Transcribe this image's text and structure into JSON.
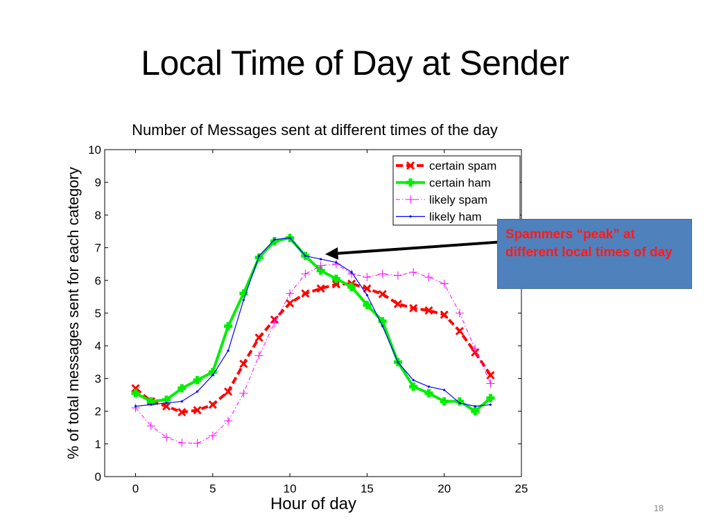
{
  "slide": {
    "title": "Local Time of Day at Sender",
    "callout": "Spammers “peak” at different local times of day",
    "page_number": "18"
  },
  "chart_data": {
    "type": "line",
    "title": "Number of Messages sent at different times of the day",
    "xlabel": "Hour of day",
    "ylabel": "% of total messages sent for each category",
    "xlim": [
      -2,
      25
    ],
    "ylim": [
      0,
      10
    ],
    "xticks": [
      0,
      5,
      10,
      15,
      20,
      25
    ],
    "yticks": [
      0,
      1,
      2,
      3,
      4,
      5,
      6,
      7,
      8,
      9,
      10
    ],
    "grid": false,
    "legend_position": "top-right",
    "x": [
      0,
      1,
      2,
      3,
      4,
      5,
      6,
      7,
      8,
      9,
      10,
      11,
      12,
      13,
      14,
      15,
      16,
      17,
      18,
      19,
      20,
      21,
      22,
      23
    ],
    "series": [
      {
        "name": "certain spam",
        "color": "#ff0000",
        "line_style": "dash",
        "marker": "x",
        "values": [
          2.7,
          2.3,
          2.15,
          1.97,
          2.03,
          2.2,
          2.6,
          3.45,
          4.25,
          4.8,
          5.3,
          5.6,
          5.75,
          5.88,
          5.9,
          5.75,
          5.58,
          5.28,
          5.15,
          5.08,
          4.95,
          4.45,
          3.8,
          3.1
        ]
      },
      {
        "name": "certain ham",
        "color": "#00ee00",
        "line_style": "solid",
        "marker": "plus",
        "values": [
          2.55,
          2.3,
          2.35,
          2.7,
          2.95,
          3.2,
          4.6,
          5.6,
          6.7,
          7.2,
          7.3,
          6.75,
          6.3,
          6.05,
          5.8,
          5.25,
          4.75,
          3.5,
          2.75,
          2.55,
          2.3,
          2.3,
          2.0,
          2.4
        ]
      },
      {
        "name": "likely spam",
        "color": "#ff00ff",
        "line_style": "dashdot",
        "marker": "plus",
        "values": [
          2.1,
          1.55,
          1.2,
          1.03,
          1.02,
          1.25,
          1.7,
          2.55,
          3.7,
          4.7,
          5.6,
          6.2,
          6.45,
          6.5,
          6.2,
          6.1,
          6.2,
          6.15,
          6.25,
          6.1,
          5.9,
          5.0,
          3.9,
          2.85
        ]
      },
      {
        "name": "likely ham",
        "color": "#0000ff",
        "line_style": "solid",
        "marker": "dot",
        "values": [
          2.15,
          2.2,
          2.25,
          2.3,
          2.6,
          3.1,
          3.85,
          5.4,
          6.75,
          7.25,
          7.3,
          6.75,
          6.65,
          6.55,
          6.25,
          5.55,
          4.6,
          3.5,
          2.95,
          2.75,
          2.65,
          2.25,
          2.15,
          2.2
        ]
      }
    ]
  }
}
